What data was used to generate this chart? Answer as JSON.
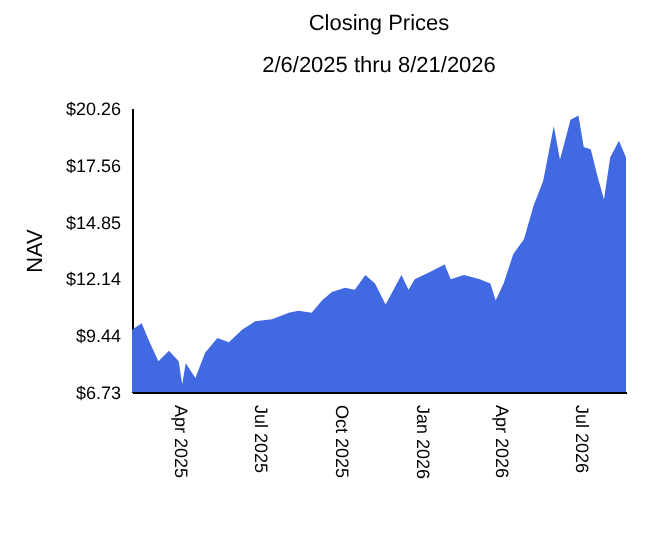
{
  "chart_data": {
    "type": "area",
    "title": "Closing Prices",
    "subtitle": "2/6/2025 thru 8/21/2026",
    "ylabel": "NAV",
    "x": [
      "2025-02-06",
      "2025-02-17",
      "2025-02-25",
      "2025-03-08",
      "2025-03-20",
      "2025-03-31",
      "2025-04-04",
      "2025-04-08",
      "2025-04-19",
      "2025-04-30",
      "2025-05-14",
      "2025-05-27",
      "2025-06-11",
      "2025-06-26",
      "2025-07-15",
      "2025-08-03",
      "2025-08-14",
      "2025-08-29",
      "2025-09-10",
      "2025-09-21",
      "2025-10-06",
      "2025-10-17",
      "2025-10-29",
      "2025-11-09",
      "2025-11-21",
      "2025-12-09",
      "2025-12-17",
      "2025-12-24",
      "2026-01-08",
      "2026-01-27",
      "2026-02-03",
      "2026-02-18",
      "2026-03-08",
      "2026-03-20",
      "2026-03-26",
      "2026-04-04",
      "2026-04-15",
      "2026-04-27",
      "2026-05-08",
      "2026-05-19",
      "2026-05-31",
      "2026-06-07",
      "2026-06-19",
      "2026-06-28",
      "2026-07-04",
      "2026-07-12",
      "2026-07-19",
      "2026-07-27",
      "2026-08-03",
      "2026-08-13",
      "2026-08-21"
    ],
    "series": [
      {
        "color": "#4169e1",
        "values": [
          9.7,
          10.0,
          9.2,
          8.2,
          8.7,
          8.2,
          7.1,
          8.1,
          7.4,
          8.6,
          9.3,
          9.1,
          9.7,
          10.1,
          10.2,
          10.5,
          10.6,
          10.5,
          11.1,
          11.5,
          11.7,
          11.6,
          12.3,
          11.9,
          10.9,
          12.3,
          11.6,
          12.1,
          12.4,
          12.8,
          12.1,
          12.3,
          12.1,
          11.9,
          11.1,
          11.9,
          13.3,
          14.0,
          15.6,
          16.8,
          19.4,
          17.8,
          19.7,
          19.9,
          18.4,
          18.3,
          17.1,
          15.9,
          17.9,
          18.7,
          17.9
        ]
      }
    ],
    "xlim": [
      "2025-02-06",
      "2026-08-21"
    ],
    "xticks": [
      {
        "value": "2025-04-01",
        "label": "Apr 2025"
      },
      {
        "value": "2025-07-01",
        "label": "Jul 2025"
      },
      {
        "value": "2025-10-01",
        "label": "Oct 2025"
      },
      {
        "value": "2026-01-01",
        "label": "Jan 2026"
      },
      {
        "value": "2026-04-01",
        "label": "Apr 2026"
      },
      {
        "value": "2026-07-01",
        "label": "Jul 2026"
      }
    ],
    "ylim": [
      6.73,
      20.26
    ],
    "yticks": [
      {
        "value": 6.73,
        "label": "$6.73"
      },
      {
        "value": 9.44,
        "label": "$9.44"
      },
      {
        "value": 12.14,
        "label": "$12.14"
      },
      {
        "value": 14.85,
        "label": "$14.85"
      },
      {
        "value": 17.56,
        "label": "$17.56"
      },
      {
        "value": 20.26,
        "label": "$20.26"
      }
    ],
    "grid": false
  }
}
